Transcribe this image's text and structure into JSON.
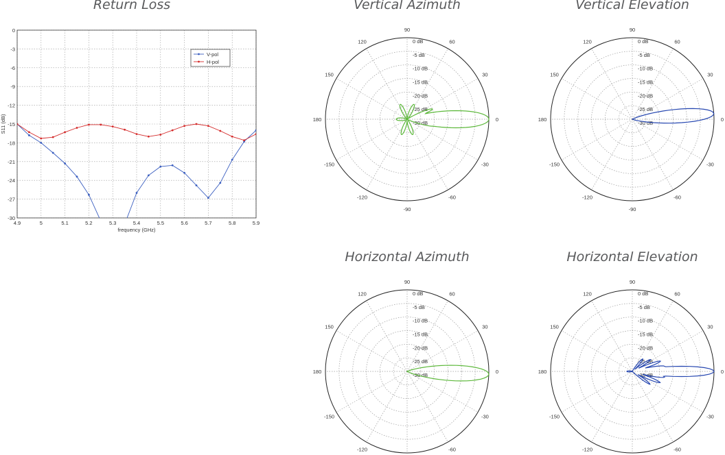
{
  "titles": {
    "return_loss": "Return Loss",
    "v_az": "Vertical Azimuth",
    "v_el": "Vertical Elevation",
    "h_az": "Horizontal Azimuth",
    "h_el": "Horizontal Elevation"
  },
  "chart_data": [
    {
      "type": "line",
      "title": "Return Loss",
      "xlabel": "frequency (GHz)",
      "ylabel": "S11 (dB)",
      "xlim": [
        4.9,
        5.9
      ],
      "ylim": [
        -30,
        0
      ],
      "xticks": [
        "4.9",
        "5",
        "5.1",
        "5.2",
        "5.3",
        "5.4",
        "5.5",
        "5.6",
        "5.7",
        "5.8",
        "5.9"
      ],
      "yticks": [
        "0",
        "-3",
        "-6",
        "-9",
        "-12",
        "-15",
        "-18",
        "-21",
        "-24",
        "-27",
        "-30"
      ],
      "grid": true,
      "legend_placement": "top-right",
      "series": [
        {
          "name": "V-pol",
          "color": "#3b5fc0",
          "x": [
            4.9,
            4.95,
            5.0,
            5.05,
            5.1,
            5.15,
            5.2,
            5.25,
            5.3,
            5.35,
            5.4,
            5.45,
            5.5,
            5.55,
            5.6,
            5.65,
            5.7,
            5.75,
            5.8,
            5.85,
            5.9
          ],
          "y": [
            -15.0,
            -16.8,
            -18.0,
            -19.6,
            -21.3,
            -23.4,
            -26.3,
            -30.5,
            -33.0,
            -31.0,
            -26.0,
            -23.2,
            -21.8,
            -21.6,
            -22.8,
            -24.8,
            -26.8,
            -24.4,
            -20.7,
            -17.8,
            -16.0
          ]
        },
        {
          "name": "H-pol",
          "color": "#d42a2a",
          "x": [
            4.9,
            4.95,
            5.0,
            5.05,
            5.1,
            5.15,
            5.2,
            5.25,
            5.3,
            5.35,
            5.4,
            5.45,
            5.5,
            5.55,
            5.6,
            5.65,
            5.7,
            5.75,
            5.8,
            5.85,
            5.9
          ],
          "y": [
            -15.0,
            -16.3,
            -17.3,
            -17.1,
            -16.3,
            -15.6,
            -15.1,
            -15.1,
            -15.4,
            -15.9,
            -16.6,
            -17.0,
            -16.7,
            -16.0,
            -15.3,
            -15.0,
            -15.3,
            -16.1,
            -17.0,
            -17.6,
            -16.6
          ]
        }
      ]
    },
    {
      "type": "polar",
      "title": "Vertical Azimuth",
      "color": "#5cb83a",
      "rlim": [
        -30,
        0
      ],
      "ring_labels": [
        "0 dB",
        "-5 dB",
        "-10 dB",
        "-15 dB",
        "-20 dB",
        "-25 dB",
        "-30 dB"
      ],
      "angle_labels": [
        "0",
        "30",
        "60",
        "90",
        "120",
        "150",
        "180",
        "-150",
        "-120",
        "-90",
        "-60",
        "-30"
      ],
      "lobes": [
        {
          "angle": 0,
          "peak_db": 0,
          "width": 10
        },
        {
          "angle": 10,
          "peak_db": -17,
          "width": 5
        },
        {
          "angle": 22,
          "peak_db": -20,
          "width": 5
        },
        {
          "angle": -14,
          "peak_db": -20,
          "width": 5
        },
        {
          "angle": 65,
          "peak_db": -24,
          "width": 9
        },
        {
          "angle": 115,
          "peak_db": -24,
          "width": 9
        },
        {
          "angle": 180,
          "peak_db": -26,
          "width": 12
        },
        {
          "angle": -70,
          "peak_db": -24,
          "width": 9
        },
        {
          "angle": -110,
          "peak_db": -24,
          "width": 9
        }
      ]
    },
    {
      "type": "polar",
      "title": "Vertical Elevation",
      "color": "#2546b0",
      "rlim": [
        -30,
        0
      ],
      "ring_labels": [
        "0 dB",
        "-5 dB",
        "-10 dB",
        "-15 dB",
        "-20 dB",
        "-25 dB",
        "-30 dB"
      ],
      "angle_labels": [
        "0",
        "30",
        "60",
        "90",
        "120",
        "150",
        "180",
        "-150",
        "-120",
        "-90",
        "-60",
        "-30"
      ],
      "lobes": [
        {
          "angle": 4,
          "peak_db": 0,
          "width": 8
        }
      ]
    },
    {
      "type": "polar",
      "title": "Horizontal Azimuth",
      "color": "#5cb83a",
      "rlim": [
        -30,
        0
      ],
      "ring_labels": [
        "0 dB",
        "-5 dB",
        "-10 dB",
        "-15 dB",
        "-20 dB",
        "-25 dB",
        "-30 dB"
      ],
      "angle_labels": [
        "0",
        "30",
        "60",
        "90",
        "120",
        "150",
        "180",
        "-150",
        "-120",
        "-90",
        "-60",
        "-30"
      ],
      "lobes": [
        {
          "angle": -2,
          "peak_db": 0,
          "width": 9
        }
      ]
    },
    {
      "type": "polar",
      "title": "Horizontal Elevation",
      "color": "#2546b0",
      "rlim": [
        -30,
        0
      ],
      "ring_labels": [
        "0 dB",
        "-5 dB",
        "-10 dB",
        "-15 dB",
        "-20 dB",
        "-25 dB",
        "-30 dB"
      ],
      "angle_labels": [
        "0",
        "30",
        "60",
        "90",
        "120",
        "150",
        "180",
        "-150",
        "-120",
        "-90",
        "-60",
        "-30"
      ],
      "lobes": [
        {
          "angle": 0,
          "peak_db": 0,
          "width": 6
        },
        {
          "angle": 9,
          "peak_db": -18,
          "width": 4
        },
        {
          "angle": 20,
          "peak_db": -19,
          "width": 4
        },
        {
          "angle": 33,
          "peak_db": -22,
          "width": 4
        },
        {
          "angle": 50,
          "peak_db": -24,
          "width": 5
        },
        {
          "angle": -10,
          "peak_db": -18,
          "width": 4
        },
        {
          "angle": -22,
          "peak_db": -19,
          "width": 4
        },
        {
          "angle": -36,
          "peak_db": -22,
          "width": 4
        },
        {
          "angle": 180,
          "peak_db": -28,
          "width": 10
        }
      ]
    }
  ]
}
